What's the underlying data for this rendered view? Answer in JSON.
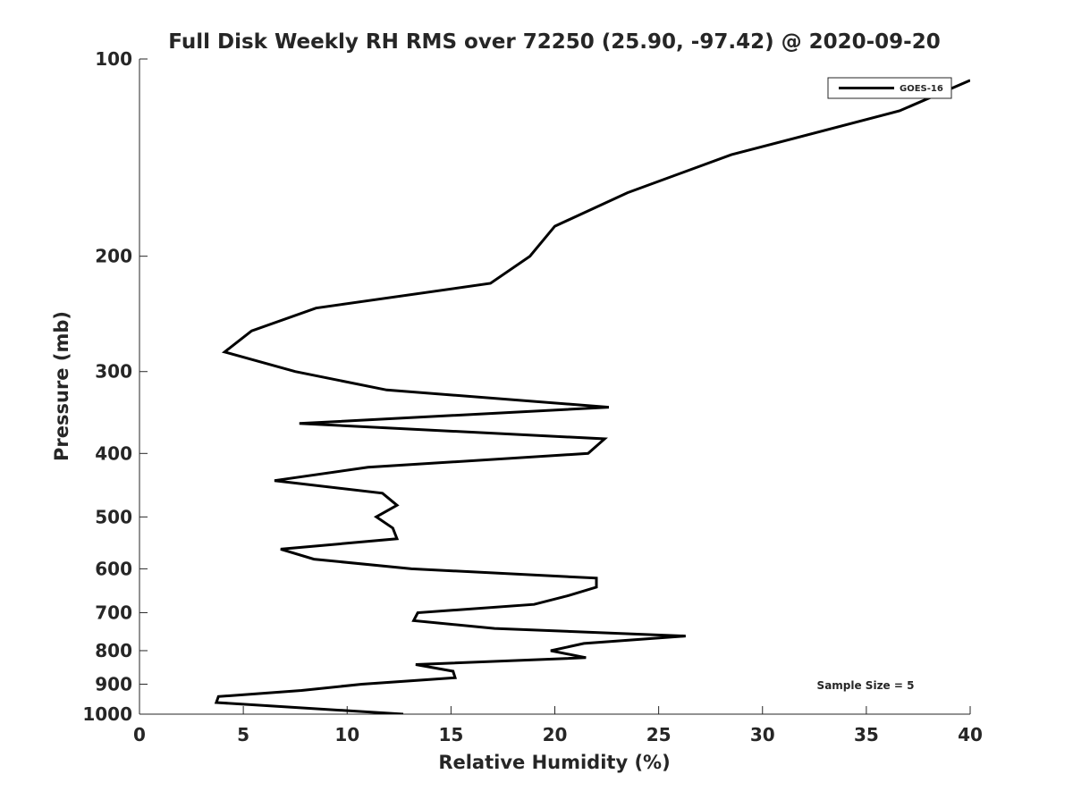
{
  "chart_data": {
    "type": "line",
    "title": "Full Disk Weekly RH RMS over 72250 (25.90, -97.42) @ 2020-09-20",
    "xlabel": "Relative Humidity (%)",
    "ylabel": "Pressure (mb)",
    "xlim": [
      0,
      40
    ],
    "ylim": [
      100,
      1000
    ],
    "yscale": "log",
    "y_reversed": true,
    "grid": false,
    "xticks": [
      0,
      5,
      10,
      15,
      20,
      25,
      30,
      35,
      40
    ],
    "yticks": [
      100,
      200,
      300,
      400,
      500,
      600,
      700,
      800,
      900,
      1000
    ],
    "legend": {
      "placement": "top-right",
      "entries": [
        "GOES-16"
      ]
    },
    "annotation": "Sample Size = 5",
    "series": [
      {
        "name": "GOES-16",
        "color": "#000000",
        "points": [
          [
            40.0,
            107.8
          ],
          [
            36.6,
            120
          ],
          [
            28.5,
            140
          ],
          [
            23.5,
            160
          ],
          [
            20.0,
            180
          ],
          [
            18.8,
            200
          ],
          [
            16.9,
            220
          ],
          [
            8.5,
            240
          ],
          [
            5.4,
            260
          ],
          [
            4.1,
            280
          ],
          [
            7.5,
            300
          ],
          [
            11.9,
            320
          ],
          [
            22.6,
            340
          ],
          [
            7.7,
            360
          ],
          [
            22.4,
            380
          ],
          [
            21.6,
            400
          ],
          [
            11.0,
            420
          ],
          [
            6.5,
            440
          ],
          [
            11.7,
            460
          ],
          [
            12.4,
            480
          ],
          [
            11.4,
            500
          ],
          [
            12.2,
            520
          ],
          [
            12.4,
            540
          ],
          [
            6.8,
            560
          ],
          [
            8.4,
            580
          ],
          [
            13.1,
            600
          ],
          [
            22.0,
            620
          ],
          [
            22.0,
            640
          ],
          [
            20.6,
            660
          ],
          [
            19.0,
            680
          ],
          [
            13.4,
            700
          ],
          [
            13.2,
            720
          ],
          [
            17.1,
            740
          ],
          [
            26.3,
            760
          ],
          [
            21.4,
            780
          ],
          [
            19.8,
            800
          ],
          [
            21.5,
            820
          ],
          [
            13.3,
            840
          ],
          [
            15.1,
            860
          ],
          [
            15.2,
            880
          ],
          [
            10.7,
            900
          ],
          [
            7.8,
            920
          ],
          [
            3.8,
            940
          ],
          [
            3.7,
            960
          ],
          [
            12.7,
            1000
          ]
        ]
      }
    ]
  }
}
